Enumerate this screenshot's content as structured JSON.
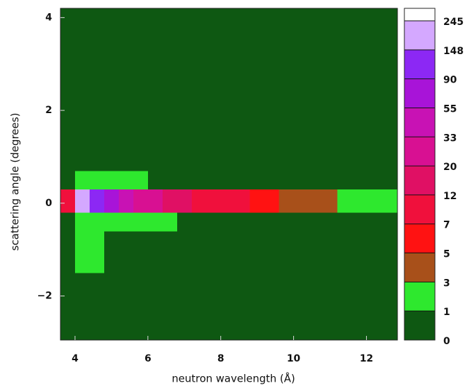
{
  "chart_data": {
    "type": "heatmap",
    "xlabel": "neutron wavelength (Å)",
    "ylabel": "scattering angle (degrees)",
    "xlim": [
      3.6,
      12.85
    ],
    "xticks": [
      4,
      6,
      8,
      10,
      12
    ],
    "ylim": [
      -2.95,
      4.2
    ],
    "yticks": [
      {
        "value": -2,
        "label": "−2"
      },
      0,
      2,
      4
    ],
    "x_edges": [
      3.6,
      4.0,
      4.4,
      4.8,
      5.2,
      5.6,
      6.0,
      6.4,
      6.8,
      7.2,
      7.6,
      8.0,
      8.4,
      8.8,
      9.2,
      9.6,
      10.0,
      10.4,
      10.8,
      11.2,
      11.6,
      12.0,
      12.4,
      12.85
    ],
    "y_edges": [
      -2.95,
      -1.5,
      -0.6,
      -0.2,
      0.3,
      0.7,
      1.5,
      4.2
    ],
    "z": [
      [
        0.4,
        0.4,
        0.4,
        0.4,
        0.4,
        0.4,
        0.4,
        0.4,
        0.4,
        0.4,
        0.4,
        0.4,
        0.4,
        0.4,
        0.4,
        0.4,
        0.4,
        0.4,
        0.4,
        0.4,
        0.4,
        0.4,
        0.4
      ],
      [
        0.5,
        1.2,
        1.1,
        0.9,
        0.5,
        0.5,
        0.5,
        0.5,
        0.5,
        0.5,
        0.5,
        0.5,
        0.5,
        0.5,
        0.5,
        0.5,
        0.5,
        0.5,
        0.5,
        0.5,
        0.5,
        0.5,
        0.5
      ],
      [
        0.6,
        2,
        1.8,
        1.5,
        1.3,
        1.2,
        1.1,
        1,
        0.9,
        0.8,
        0.8,
        0.7,
        0.7,
        0.6,
        0.6,
        0.6,
        0.6,
        0.5,
        0.5,
        0.5,
        0.5,
        0.5,
        0.5
      ],
      [
        8,
        160,
        95,
        60,
        40,
        28,
        22,
        16,
        13,
        11,
        9,
        8,
        7,
        6,
        5,
        4.5,
        4,
        3.5,
        3,
        2.5,
        2,
        1.6,
        1.2
      ],
      [
        0.6,
        1.5,
        1.3,
        1.2,
        1.1,
        1,
        0.9,
        0.8,
        0.8,
        0.7,
        0.7,
        0.6,
        0.6,
        0.6,
        0.5,
        0.5,
        0.5,
        0.5,
        0.5,
        0.5,
        0.5,
        0.5,
        0.5
      ],
      [
        0.5,
        0.9,
        0.8,
        0.7,
        0.5,
        0.5,
        0.5,
        0.5,
        0.5,
        0.5,
        0.5,
        0.5,
        0.5,
        0.5,
        0.5,
        0.5,
        0.5,
        0.5,
        0.5,
        0.5,
        0.5,
        0.5,
        0.5
      ],
      [
        0.45,
        0.6,
        0.45,
        0.45,
        0.45,
        0.45,
        0.45,
        0.45,
        0.45,
        0.45,
        0.45,
        0.45,
        0.45,
        0.45,
        0.45,
        0.45,
        0.45,
        0.45,
        0.45,
        0.45,
        0.45,
        0.45,
        0.45
      ]
    ],
    "colorbar_ticks": [
      0,
      1,
      3,
      5,
      7,
      12,
      20,
      33,
      55,
      90,
      148,
      245
    ],
    "colorbar_colors": [
      "#0e5812",
      "#2ee82e",
      "#a8501a",
      "#ff1212",
      "#f0103c",
      "#e01064",
      "#d81092",
      "#c812b4",
      "#a814d8",
      "#8c28f4",
      "#d4a8ff"
    ]
  }
}
